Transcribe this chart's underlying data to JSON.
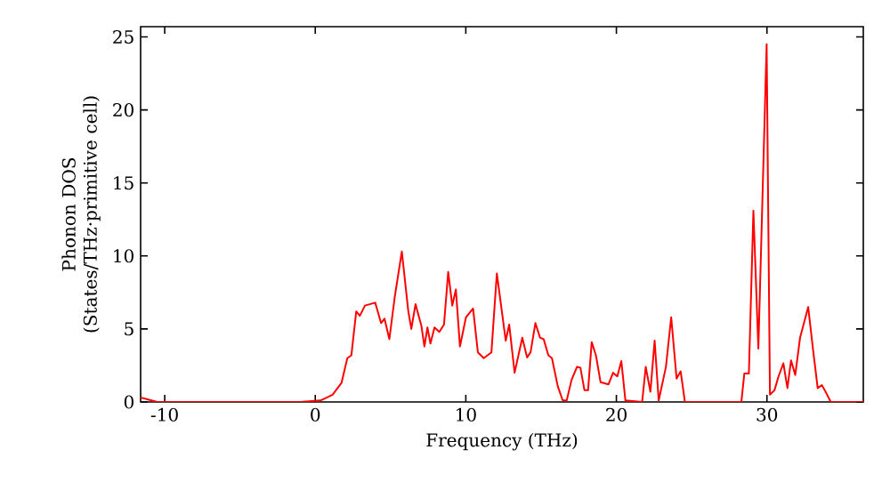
{
  "chart_data": {
    "type": "line",
    "xlabel": "Frequency (THz)",
    "ylabel": "Phonon DOS (States/THz·primitive cell)",
    "xlim": [
      -11.6,
      36.4
    ],
    "ylim": [
      0,
      25.7
    ],
    "xticks": [
      -10,
      0,
      10,
      20,
      30
    ],
    "yticks": [
      0,
      5,
      10,
      15,
      20,
      25
    ],
    "marker": "none",
    "line_style": "solid",
    "series": [
      {
        "color": "#ff0000",
        "x": [
          -11.6,
          -10.5,
          -1.0,
          0.35,
          1.15,
          1.74,
          2.13,
          2.4,
          2.72,
          2.96,
          3.3,
          3.98,
          4.37,
          4.6,
          4.92,
          5.28,
          5.75,
          6.18,
          6.38,
          6.66,
          7.05,
          7.25,
          7.45,
          7.65,
          7.92,
          8.24,
          8.55,
          8.83,
          9.1,
          9.34,
          9.61,
          10.01,
          10.48,
          10.8,
          11.19,
          11.7,
          12.06,
          12.65,
          12.88,
          13.24,
          13.75,
          14.07,
          14.3,
          14.62,
          14.93,
          15.17,
          15.48,
          15.72,
          16.11,
          16.43,
          16.7,
          17.02,
          17.38,
          17.61,
          17.88,
          18.12,
          18.36,
          18.64,
          18.95,
          19.47,
          19.78,
          20.06,
          20.33,
          20.6,
          21.71,
          21.95,
          22.26,
          22.54,
          22.81,
          23.29,
          23.64,
          24.0,
          24.27,
          24.55,
          28.3,
          28.5,
          28.8,
          29.1,
          29.43,
          29.98,
          30.2,
          30.5,
          30.77,
          31.09,
          31.36,
          31.6,
          31.88,
          32.2,
          32.74,
          33.06,
          33.37,
          33.65,
          33.92,
          34.24,
          36.4
        ],
        "values": [
          0.3,
          0,
          0,
          0.1,
          0.5,
          1.3,
          3.0,
          3.2,
          6.2,
          5.9,
          6.6,
          6.8,
          5.4,
          5.7,
          4.3,
          7.2,
          10.3,
          6.2,
          5.0,
          6.7,
          5.2,
          3.8,
          5.1,
          4.0,
          5.1,
          4.8,
          5.3,
          8.9,
          6.6,
          7.7,
          3.8,
          5.8,
          6.4,
          3.4,
          3.0,
          3.4,
          8.8,
          4.2,
          5.3,
          2.0,
          4.4,
          3.05,
          3.4,
          5.4,
          4.4,
          4.3,
          3.2,
          3.0,
          1.06,
          0.12,
          0.1,
          1.5,
          2.4,
          2.35,
          0.8,
          0.8,
          4.1,
          3.2,
          1.35,
          1.2,
          2.0,
          1.75,
          2.8,
          0.1,
          0,
          2.4,
          0.7,
          4.2,
          0.1,
          2.4,
          5.8,
          1.6,
          2.1,
          0,
          0,
          1.95,
          1.95,
          13.1,
          3.65,
          24.5,
          0.5,
          0.8,
          1.75,
          2.65,
          0.95,
          2.85,
          1.85,
          4.4,
          6.5,
          3.6,
          0.95,
          1.15,
          0.65,
          0,
          0
        ]
      }
    ]
  }
}
